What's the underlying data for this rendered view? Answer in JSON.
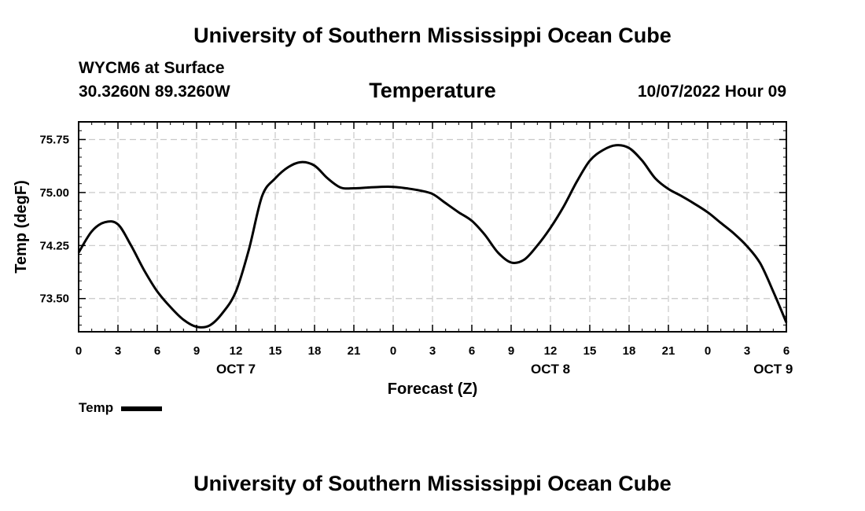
{
  "header": {
    "title": "University of Southern Mississippi Ocean Cube",
    "station": "WYCM6 at Surface",
    "coords": "30.3260N  89.3260W",
    "chart_title": "Temperature",
    "timestamp": "10/07/2022 Hour 09"
  },
  "footer": {
    "title": "University of Southern Mississippi Ocean Cube"
  },
  "legend": {
    "label": "Temp"
  },
  "chart_data": {
    "type": "line",
    "title": "Temperature",
    "xlabel": "Forecast (Z)",
    "ylabel": "Temp (degF)",
    "xlim": [
      0,
      54
    ],
    "ylim": [
      73.03,
      76.0
    ],
    "x_ticks": [
      0,
      3,
      6,
      9,
      12,
      15,
      18,
      21,
      24,
      27,
      30,
      33,
      36,
      39,
      42,
      45,
      48,
      51,
      54
    ],
    "x_tick_labels": [
      "0",
      "3",
      "6",
      "9",
      "12",
      "15",
      "18",
      "21",
      "0",
      "3",
      "6",
      "9",
      "12",
      "15",
      "18",
      "21",
      "0",
      "3",
      "6"
    ],
    "date_labels": [
      {
        "x": 12,
        "label": "OCT 7"
      },
      {
        "x": 36,
        "label": "OCT 8"
      },
      {
        "x": 53,
        "label": "OCT 9"
      }
    ],
    "y_ticks": [
      73.5,
      74.25,
      75.0,
      75.75
    ],
    "y_tick_labels": [
      "73.50",
      "74.25",
      "75.00",
      "75.75"
    ],
    "grid": true,
    "series": [
      {
        "name": "Temp",
        "color": "#000000",
        "x": [
          0,
          1,
          2,
          3,
          4,
          5,
          6,
          7,
          8,
          9,
          10,
          11,
          12,
          13,
          14,
          15,
          16,
          17,
          18,
          19,
          20,
          21,
          22,
          23,
          24,
          25,
          26,
          27,
          28,
          29,
          30,
          31,
          32,
          33,
          34,
          35,
          36,
          37,
          38,
          39,
          40,
          41,
          42,
          43,
          44,
          45,
          46,
          47,
          48,
          49,
          50,
          51,
          52,
          53,
          54
        ],
        "values": [
          74.15,
          74.45,
          74.58,
          74.55,
          74.25,
          73.9,
          73.6,
          73.38,
          73.2,
          73.1,
          73.12,
          73.3,
          73.6,
          74.2,
          74.95,
          75.2,
          75.36,
          75.43,
          75.38,
          75.2,
          75.07,
          75.06,
          75.07,
          75.08,
          75.08,
          75.06,
          75.03,
          74.98,
          74.85,
          74.72,
          74.6,
          74.4,
          74.15,
          74.01,
          74.05,
          74.25,
          74.5,
          74.8,
          75.15,
          75.45,
          75.6,
          75.67,
          75.63,
          75.45,
          75.2,
          75.05,
          74.95,
          74.84,
          74.72,
          74.57,
          74.42,
          74.24,
          74.0,
          73.6,
          73.16
        ]
      }
    ]
  }
}
